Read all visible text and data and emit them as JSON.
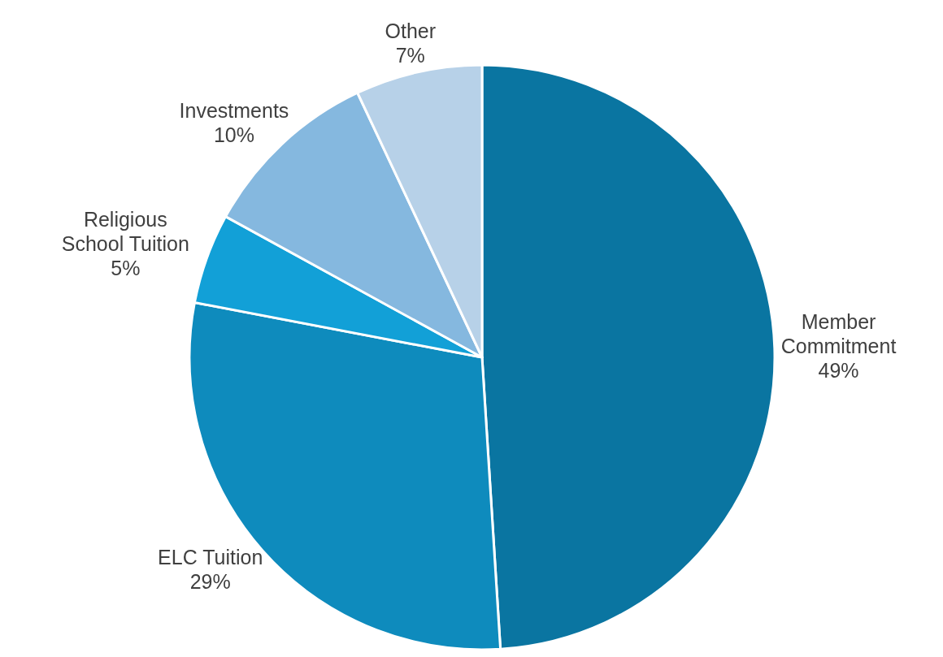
{
  "chart_data": {
    "type": "pie",
    "categories": [
      "Member Commitment",
      "ELC Tuition",
      "Religious School Tuition",
      "Investments",
      "Other"
    ],
    "values": [
      49,
      29,
      5,
      10,
      7
    ],
    "value_labels": [
      "49%",
      "29%",
      "5%",
      "10%",
      "7%"
    ],
    "colors": [
      "#0a75a1",
      "#0e8bbd",
      "#12a0d7",
      "#85b8df",
      "#b7d1e8"
    ]
  }
}
